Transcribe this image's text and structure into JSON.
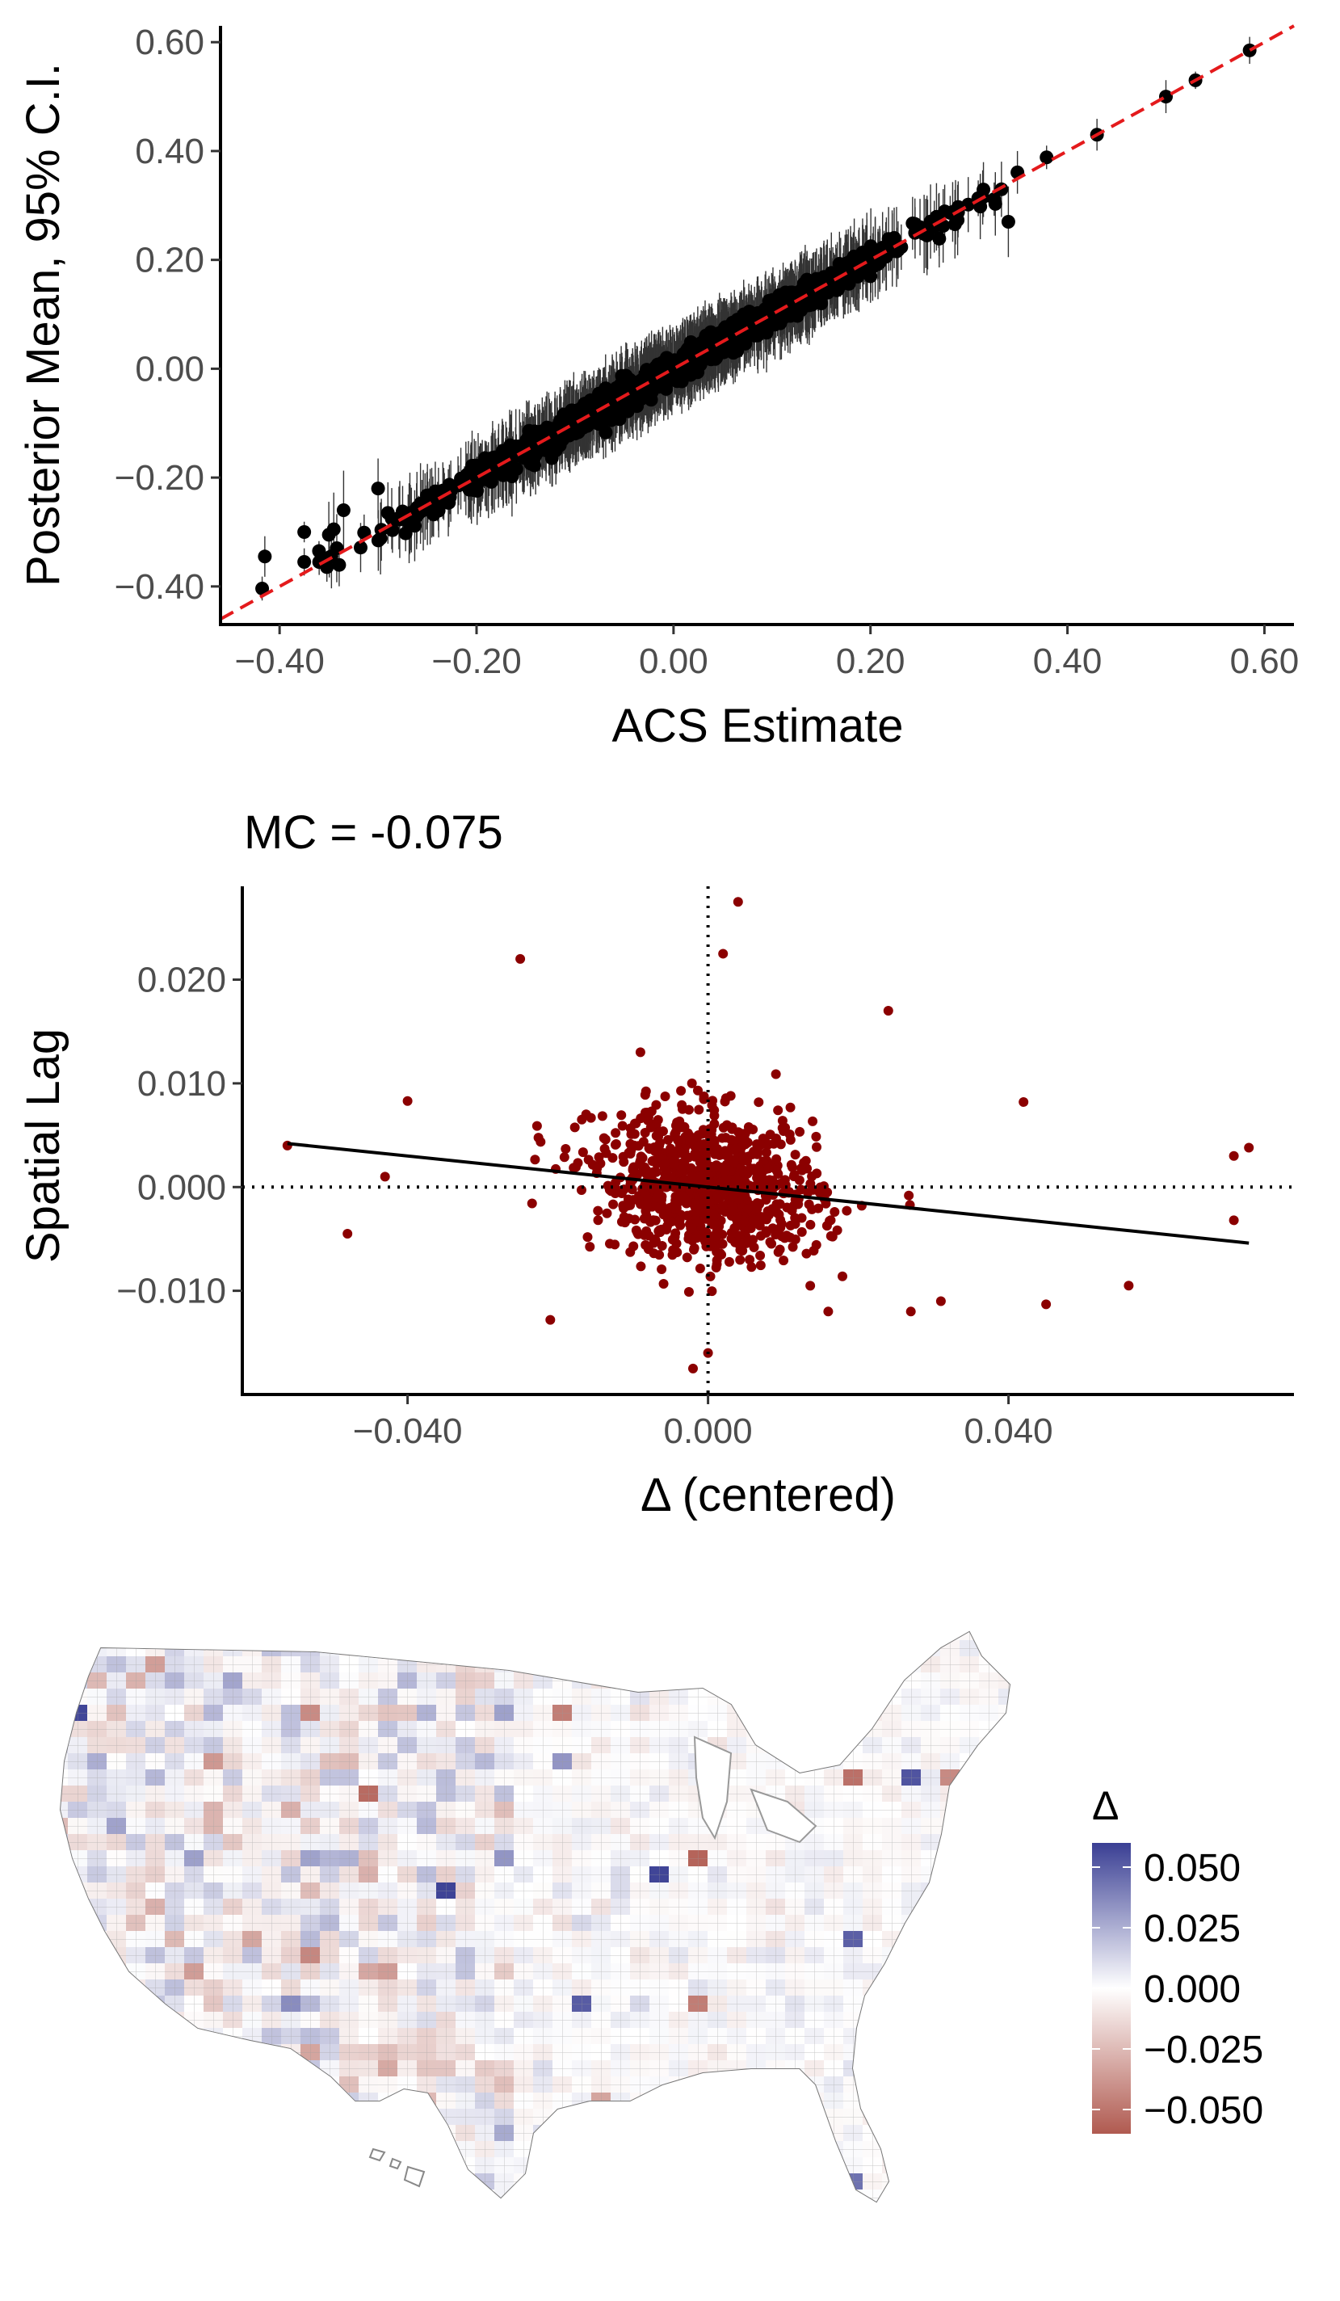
{
  "chart_data": [
    {
      "type": "scatter",
      "panel": "posterior-vs-acs",
      "xlabel": "ACS Estimate",
      "ylabel": "Posterior Mean, 95% C.I.",
      "xlim": [
        -0.46,
        0.63
      ],
      "ylim": [
        -0.47,
        0.63
      ],
      "x_ticks": [
        -0.4,
        -0.2,
        0.0,
        0.2,
        0.4,
        0.6
      ],
      "x_tick_labels": [
        "−0.40",
        "−0.20",
        "0.00",
        "0.20",
        "0.40",
        "0.60"
      ],
      "y_ticks": [
        -0.4,
        -0.2,
        0.0,
        0.2,
        0.4,
        0.6
      ],
      "y_tick_labels": [
        "−0.40",
        "−0.20",
        "0.00",
        "0.20",
        "0.40",
        "0.60"
      ],
      "reference_line": {
        "slope": 1,
        "intercept": 0,
        "color": "#e41a1c",
        "style": "dashed"
      },
      "point_color": "#000000",
      "n_points": 1500,
      "x_range_of_data": [
        -0.42,
        0.59
      ],
      "ci_half_width_approx": 0.05,
      "highlighted_points": [
        {
          "x": -0.415,
          "y": -0.345
        },
        {
          "x": -0.375,
          "y": -0.355
        },
        {
          "x": -0.375,
          "y": -0.3
        },
        {
          "x": -0.36,
          "y": -0.335
        },
        {
          "x": -0.35,
          "y": -0.305
        },
        {
          "x": -0.345,
          "y": -0.295
        },
        {
          "x": -0.335,
          "y": -0.26
        },
        {
          "x": -0.3,
          "y": -0.22
        },
        {
          "x": -0.29,
          "y": -0.265
        },
        {
          "x": 0.15,
          "y": 0.12
        },
        {
          "x": 0.2,
          "y": 0.17
        },
        {
          "x": 0.34,
          "y": 0.27
        },
        {
          "x": 0.43,
          "y": 0.43
        },
        {
          "x": 0.5,
          "y": 0.5
        },
        {
          "x": 0.53,
          "y": 0.53
        },
        {
          "x": 0.585,
          "y": 0.585
        }
      ]
    },
    {
      "type": "scatter",
      "panel": "moran-scatter",
      "title": "MC = -0.075",
      "xlabel": "Δ (centered)",
      "ylabel": "Spatial Lag",
      "xlim": [
        -0.062,
        0.078
      ],
      "ylim": [
        -0.02,
        0.029
      ],
      "x_ticks": [
        -0.04,
        0.0,
        0.04
      ],
      "x_tick_labels": [
        "−0.040",
        "0.000",
        "0.040"
      ],
      "y_ticks": [
        -0.01,
        0.0,
        0.01,
        0.02
      ],
      "y_tick_labels": [
        "−0.010",
        "0.000",
        "0.010",
        "0.020"
      ],
      "point_color": "#8b0000",
      "regression_line": {
        "slope": -0.075,
        "intercept": 0.0
      },
      "reference_lines": {
        "x": 0,
        "y": 0,
        "style": "dotted"
      },
      "n_points": 900,
      "outliers": [
        {
          "x": -0.056,
          "y": 0.004
        },
        {
          "x": -0.048,
          "y": -0.0045
        },
        {
          "x": -0.043,
          "y": 0.001
        },
        {
          "x": -0.04,
          "y": 0.0083
        },
        {
          "x": -0.025,
          "y": 0.022
        },
        {
          "x": -0.021,
          "y": -0.0128
        },
        {
          "x": -0.009,
          "y": 0.013
        },
        {
          "x": 0.002,
          "y": 0.0225
        },
        {
          "x": 0.004,
          "y": 0.0275
        },
        {
          "x": 0.024,
          "y": 0.017
        },
        {
          "x": 0.042,
          "y": 0.0082
        },
        {
          "x": 0.045,
          "y": -0.0113
        },
        {
          "x": 0.056,
          "y": -0.0095
        },
        {
          "x": 0.07,
          "y": 0.003
        },
        {
          "x": 0.072,
          "y": 0.0038
        },
        {
          "x": 0.07,
          "y": -0.0032
        },
        {
          "x": -0.002,
          "y": -0.0175
        },
        {
          "x": 0.0,
          "y": -0.016
        },
        {
          "x": 0.016,
          "y": -0.012
        },
        {
          "x": 0.031,
          "y": -0.011
        },
        {
          "x": 0.027,
          "y": -0.012
        }
      ]
    },
    {
      "type": "heatmap",
      "panel": "us-county-map",
      "title": "",
      "legend": {
        "title": "Δ",
        "labels": [
          "0.050",
          "0.025",
          "0.000",
          "−0.025",
          "−0.050"
        ],
        "values": [
          0.05,
          0.025,
          0.0,
          -0.025,
          -0.05
        ],
        "range": [
          -0.06,
          0.06
        ],
        "colors": {
          "high": "#3a3f94",
          "mid": "#ffffff",
          "low": "#b05a50"
        }
      }
    }
  ]
}
